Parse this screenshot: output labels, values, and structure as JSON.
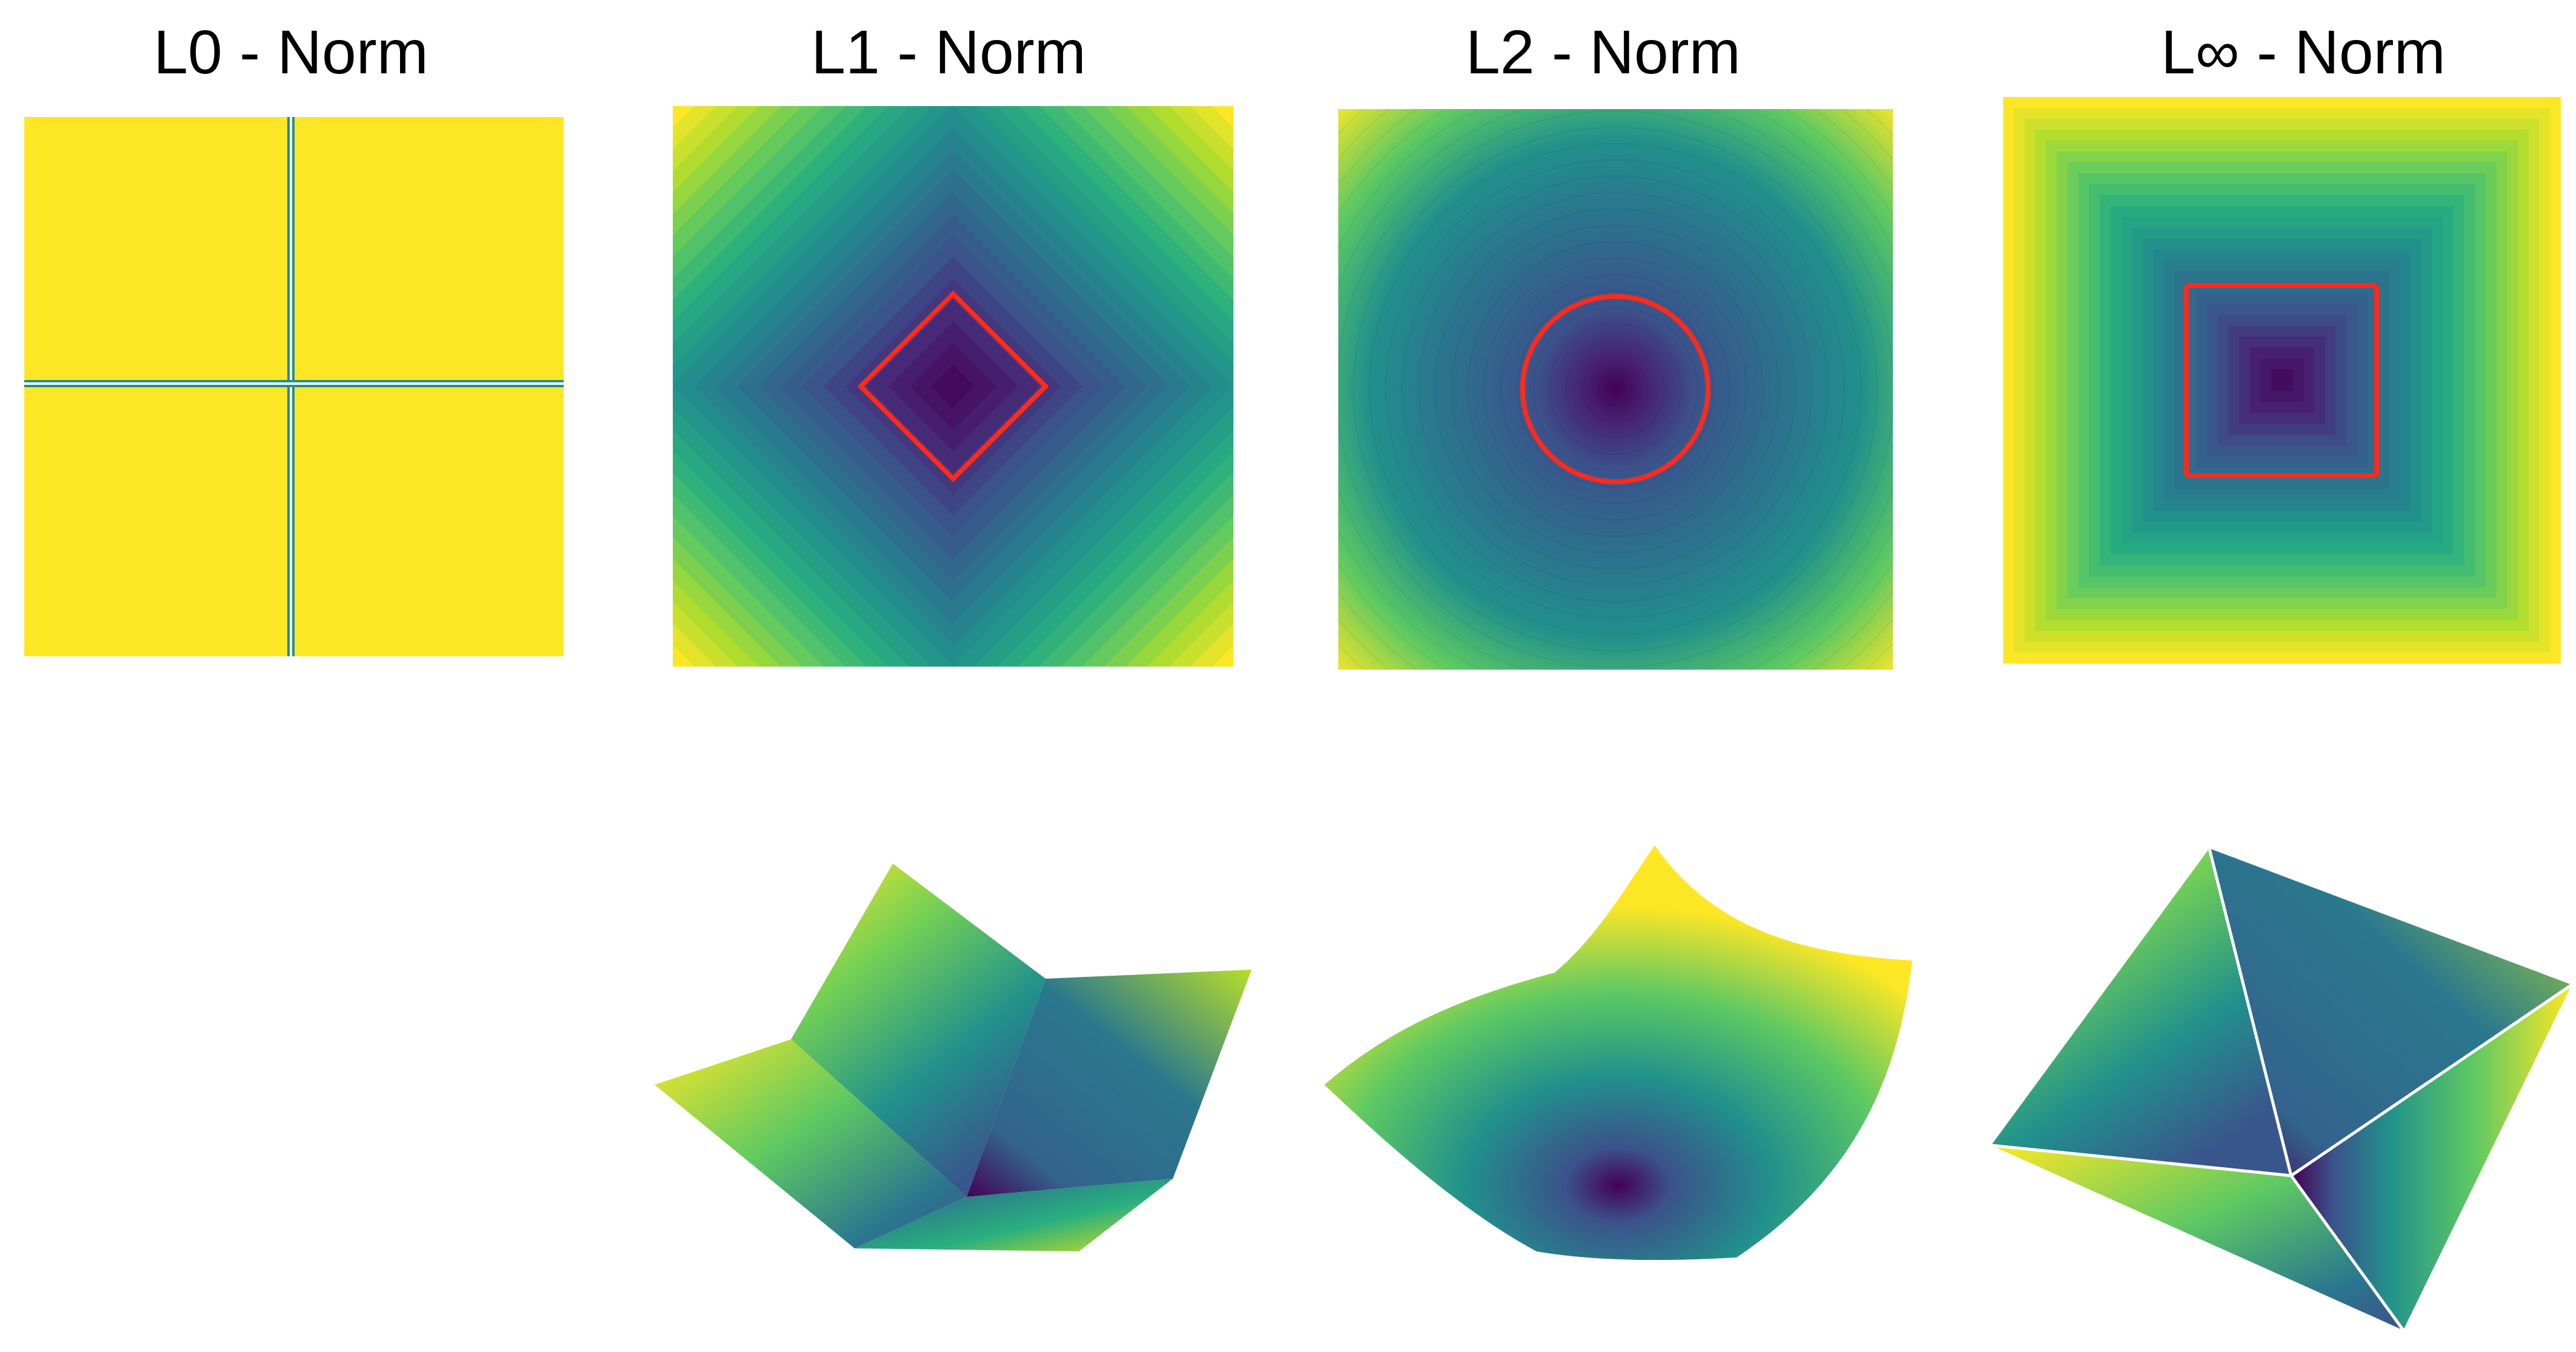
{
  "titles": {
    "l0": "L0 - Norm",
    "l1": "L1 - Norm",
    "l2": "L2 - Norm",
    "linf": "L∞ - Norm"
  },
  "panels": [
    {
      "norm": "L0",
      "contour_plot": true,
      "surface_plot": false
    },
    {
      "norm": "L1",
      "contour_plot": true,
      "surface_plot": true,
      "unit_ball_shape": "diamond"
    },
    {
      "norm": "L2",
      "contour_plot": true,
      "surface_plot": true,
      "unit_ball_shape": "circle"
    },
    {
      "norm": "L∞",
      "contour_plot": true,
      "surface_plot": true,
      "unit_ball_shape": "square"
    }
  ],
  "colors": {
    "background": "#ffffff",
    "unit_ball": "#ff2a1a",
    "l0_fill": "#fde725",
    "l0_axis": "#21918c",
    "edge_lines": "#ffffff",
    "colormap": [
      "#440154",
      "#3b528b",
      "#21918c",
      "#5ec962",
      "#fde725"
    ]
  }
}
